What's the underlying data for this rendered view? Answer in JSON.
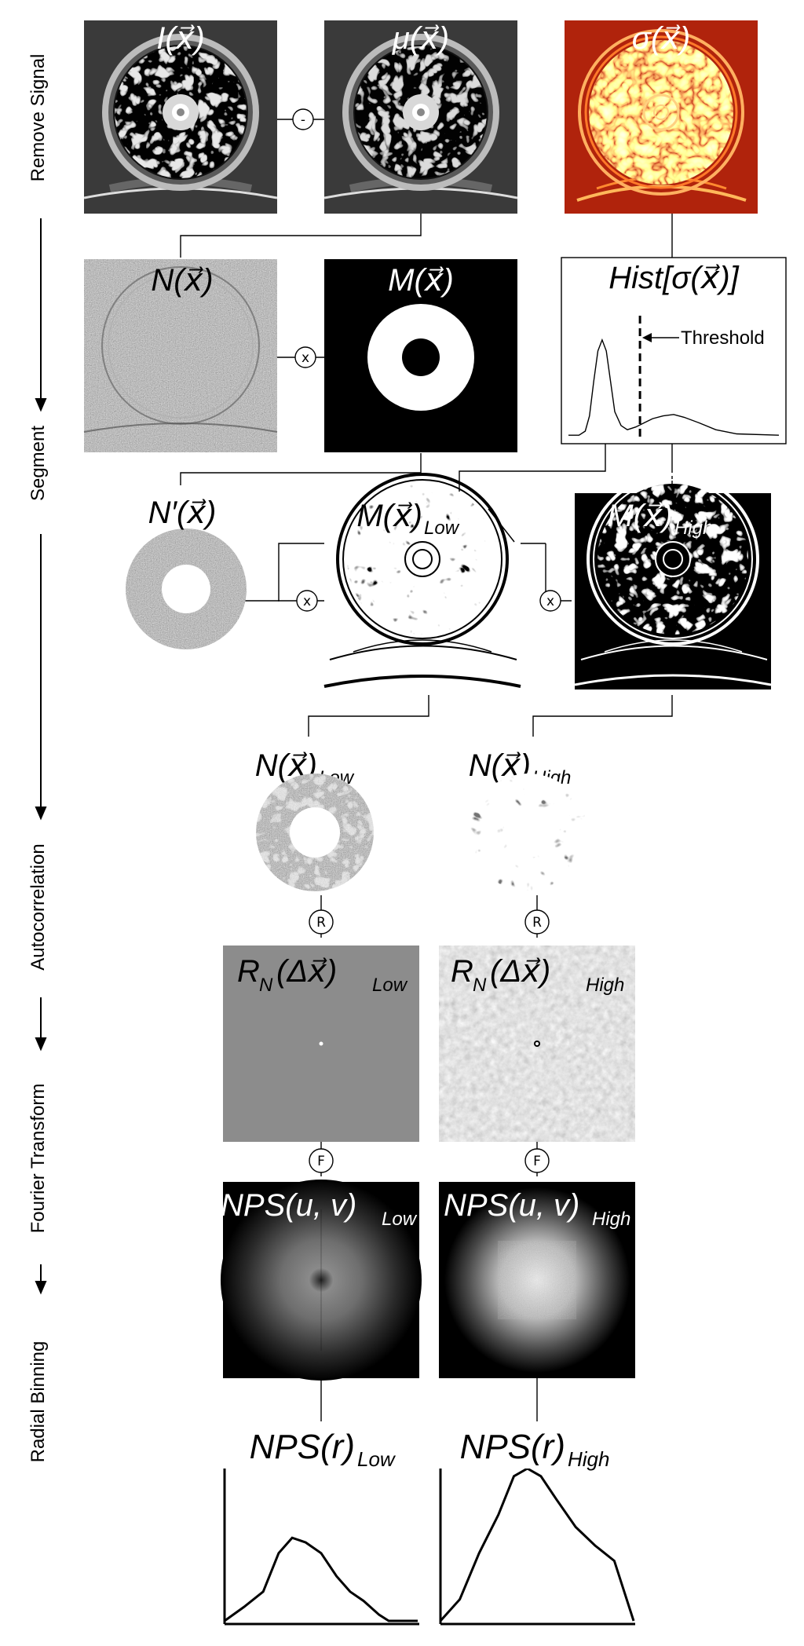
{
  "steps": {
    "remove_signal": "Remove Signal",
    "segment": "Segment",
    "autocorrelation": "Autocorrelation",
    "fourier_transform": "Fourier Transform",
    "radial_binning": "Radial Binning"
  },
  "operators": {
    "subtract": "-",
    "multiply": "x",
    "autocorrelate": "R",
    "fourier": "F"
  },
  "labels": {
    "image": {
      "main": "I(x⃗)"
    },
    "mean": {
      "main": "μ(x⃗)"
    },
    "sigma": {
      "main": "σ(x⃗)"
    },
    "noise": {
      "main": "N(x⃗)"
    },
    "mask": {
      "main": "M(x⃗)"
    },
    "hist": {
      "main": "Hist[σ(x⃗)]"
    },
    "noise_prime": {
      "main": "N′(x⃗)"
    },
    "mask_low": {
      "main": "M(x⃗)",
      "sub": "Low"
    },
    "mask_high": {
      "main": "M(x⃗)",
      "sub": "High"
    },
    "noise_low": {
      "main": "N(x⃗)",
      "sub": "Low"
    },
    "noise_high": {
      "main": "N(x⃗)",
      "sub": "High"
    },
    "rn_low": {
      "main": "R",
      "sub": "N",
      "arg": "(Δx⃗)",
      "sub2": "Low"
    },
    "rn_high": {
      "main": "R",
      "sub": "N",
      "arg": "(Δx⃗)",
      "sub2": "High"
    },
    "nps_uv_low": {
      "main": "NPS(u, v)",
      "sub": "Low"
    },
    "nps_uv_high": {
      "main": "NPS(u, v)",
      "sub": "High"
    },
    "nps_r_low": {
      "main": "NPS(r)",
      "sub": "Low"
    },
    "nps_r_high": {
      "main": "NPS(r)",
      "sub": "High"
    }
  },
  "histogram": {
    "threshold_label": "Threshold",
    "threshold_value": 0.34,
    "curve": [
      [
        0,
        0.99
      ],
      [
        0.05,
        0.99
      ],
      [
        0.08,
        0.96
      ],
      [
        0.1,
        0.85
      ],
      [
        0.12,
        0.6
      ],
      [
        0.14,
        0.38
      ],
      [
        0.16,
        0.3
      ],
      [
        0.18,
        0.38
      ],
      [
        0.2,
        0.6
      ],
      [
        0.22,
        0.82
      ],
      [
        0.25,
        0.92
      ],
      [
        0.28,
        0.95
      ],
      [
        0.32,
        0.93
      ],
      [
        0.36,
        0.9
      ],
      [
        0.4,
        0.87
      ],
      [
        0.45,
        0.85
      ],
      [
        0.5,
        0.84
      ],
      [
        0.55,
        0.86
      ],
      [
        0.62,
        0.9
      ],
      [
        0.7,
        0.95
      ],
      [
        0.8,
        0.98
      ],
      [
        1,
        0.99
      ]
    ]
  },
  "nps_curves": {
    "low": [
      [
        0,
        0.99
      ],
      [
        0.1,
        0.9
      ],
      [
        0.2,
        0.8
      ],
      [
        0.28,
        0.55
      ],
      [
        0.35,
        0.45
      ],
      [
        0.42,
        0.48
      ],
      [
        0.5,
        0.55
      ],
      [
        0.58,
        0.7
      ],
      [
        0.65,
        0.8
      ],
      [
        0.72,
        0.86
      ],
      [
        0.8,
        0.95
      ],
      [
        0.85,
        0.99
      ],
      [
        1,
        0.99
      ]
    ],
    "high": [
      [
        0,
        0.99
      ],
      [
        0.1,
        0.85
      ],
      [
        0.2,
        0.55
      ],
      [
        0.3,
        0.3
      ],
      [
        0.38,
        0.05
      ],
      [
        0.45,
        0.0
      ],
      [
        0.52,
        0.05
      ],
      [
        0.6,
        0.2
      ],
      [
        0.7,
        0.38
      ],
      [
        0.8,
        0.5
      ],
      [
        0.9,
        0.6
      ],
      [
        1,
        0.99
      ]
    ]
  }
}
